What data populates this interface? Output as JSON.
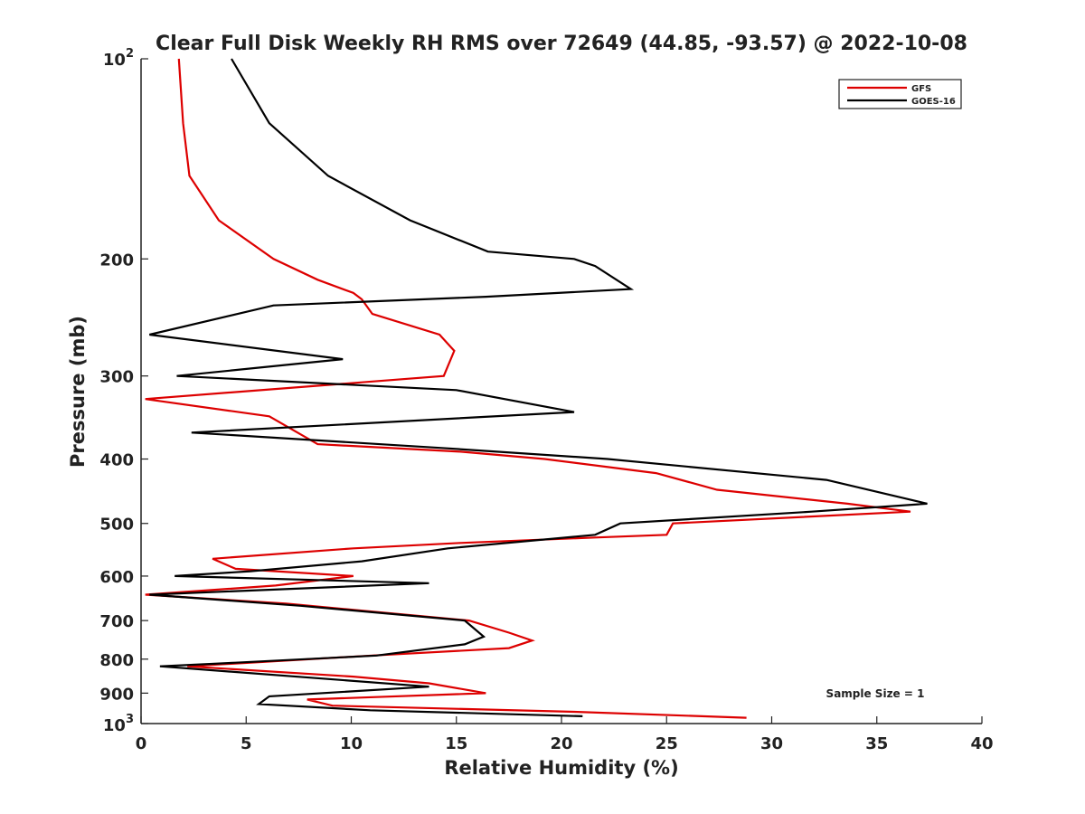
{
  "chart_data": {
    "type": "line",
    "title": "Clear Full Disk Weekly RH RMS over 72649 (44.85, -93.57) @ 2022-10-08",
    "xlabel": "Relative Humidity (%)",
    "ylabel": "Pressure (mb)",
    "xlim": [
      0,
      40
    ],
    "ylim": [
      100,
      1000
    ],
    "y_scale": "log",
    "y_reversed": true,
    "xticks": [
      0,
      5,
      10,
      15,
      20,
      25,
      30,
      35,
      40
    ],
    "xtick_labels": [
      "0",
      "5",
      "10",
      "15",
      "20",
      "25",
      "30",
      "35",
      "40"
    ],
    "yticks": [
      200,
      300,
      400,
      500,
      600,
      700,
      800,
      900
    ],
    "ytick_labels": [
      "200",
      "300",
      "400",
      "500",
      "600",
      "700",
      "800",
      "900"
    ],
    "ytick_top": {
      "base": "10",
      "exp": "2"
    },
    "ytick_bottom": {
      "base": "10",
      "exp": "3"
    },
    "grid": false,
    "legend_position": "top-right",
    "annotation": "Sample Size = 1",
    "series": [
      {
        "name": "GFS",
        "color": "#dd0000",
        "points": [
          [
            1.8,
            100
          ],
          [
            2.0,
            125
          ],
          [
            2.3,
            150
          ],
          [
            3.7,
            175
          ],
          [
            6.3,
            200
          ],
          [
            8.4,
            215
          ],
          [
            10.1,
            225
          ],
          [
            10.5,
            230
          ],
          [
            11.0,
            242
          ],
          [
            14.2,
            260
          ],
          [
            14.9,
            275
          ],
          [
            14.4,
            300
          ],
          [
            0.2,
            325
          ],
          [
            6.1,
            345
          ],
          [
            8.4,
            380
          ],
          [
            15.2,
            390
          ],
          [
            19.2,
            400
          ],
          [
            24.5,
            420
          ],
          [
            27.4,
            445
          ],
          [
            33.6,
            467
          ],
          [
            36.6,
            480
          ],
          [
            25.3,
            500
          ],
          [
            25.0,
            520
          ],
          [
            21.6,
            525
          ],
          [
            15.2,
            535
          ],
          [
            10.1,
            545
          ],
          [
            3.4,
            565
          ],
          [
            4.5,
            585
          ],
          [
            10.1,
            600
          ],
          [
            6.4,
            620
          ],
          [
            0.2,
            640
          ],
          [
            6.9,
            660
          ],
          [
            15.6,
            700
          ],
          [
            17.5,
            730
          ],
          [
            18.6,
            750
          ],
          [
            17.5,
            770
          ],
          [
            11.0,
            790
          ],
          [
            2.2,
            820
          ],
          [
            10.1,
            850
          ],
          [
            13.7,
            870
          ],
          [
            16.4,
            900
          ],
          [
            7.9,
            920
          ],
          [
            9.1,
            940
          ],
          [
            20.6,
            960
          ],
          [
            28.8,
            980
          ]
        ]
      },
      {
        "name": "GOES-16",
        "color": "#000000",
        "points": [
          [
            4.3,
            100
          ],
          [
            6.1,
            125
          ],
          [
            8.9,
            150
          ],
          [
            12.8,
            175
          ],
          [
            16.5,
            195
          ],
          [
            20.6,
            200
          ],
          [
            21.6,
            205
          ],
          [
            23.3,
            222
          ],
          [
            16.4,
            228
          ],
          [
            6.3,
            235
          ],
          [
            0.4,
            260
          ],
          [
            9.6,
            283
          ],
          [
            1.7,
            300
          ],
          [
            15.0,
            315
          ],
          [
            20.6,
            340
          ],
          [
            2.4,
            365
          ],
          [
            14.3,
            385
          ],
          [
            22.2,
            400
          ],
          [
            32.6,
            430
          ],
          [
            37.4,
            467
          ],
          [
            31.9,
            480
          ],
          [
            22.8,
            500
          ],
          [
            21.6,
            520
          ],
          [
            14.6,
            545
          ],
          [
            10.5,
            570
          ],
          [
            5.2,
            590
          ],
          [
            1.6,
            600
          ],
          [
            13.7,
            615
          ],
          [
            0.4,
            640
          ],
          [
            7.6,
            665
          ],
          [
            15.4,
            700
          ],
          [
            16.3,
            740
          ],
          [
            15.4,
            760
          ],
          [
            11.2,
            790
          ],
          [
            4.5,
            810
          ],
          [
            0.9,
            820
          ],
          [
            13.7,
            880
          ],
          [
            6.1,
            910
          ],
          [
            5.6,
            935
          ],
          [
            10.9,
            955
          ],
          [
            21.0,
            975
          ]
        ]
      }
    ]
  }
}
